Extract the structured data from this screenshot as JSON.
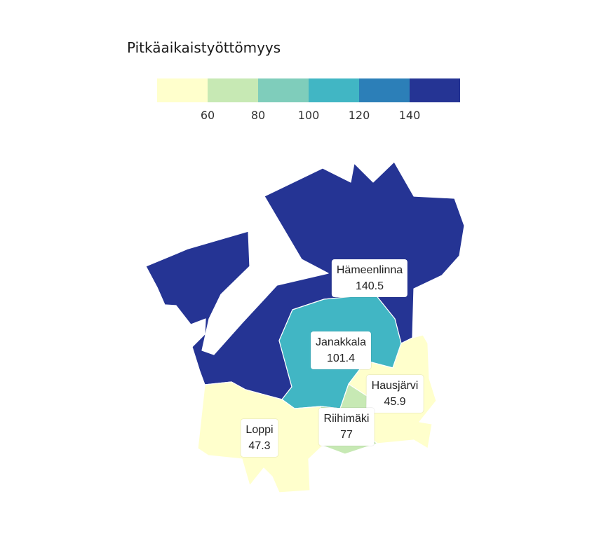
{
  "legend": {
    "title": "Pitkäaikaistyöttömyys",
    "ticks": [
      "60",
      "80",
      "100",
      "120",
      "140"
    ],
    "bins": [
      "#ffffcc",
      "#c7e9b4",
      "#7fcdbb",
      "#41b6c4",
      "#2c7fb8",
      "#253494"
    ]
  },
  "regions": [
    {
      "id": "hameenlinna",
      "name": "Hämeenlinna",
      "value": "140.5",
      "color": "#253494"
    },
    {
      "id": "janakkala",
      "name": "Janakkala",
      "value": "101.4",
      "color": "#41b6c4"
    },
    {
      "id": "hausjarvi",
      "name": "Hausjärvi",
      "value": "45.9",
      "color": "#ffffcc"
    },
    {
      "id": "riihimaki",
      "name": "Riihimäki",
      "value": "77",
      "color": "#c7e9b4"
    },
    {
      "id": "loppi",
      "name": "Loppi",
      "value": "47.3",
      "color": "#ffffcc"
    }
  ]
}
